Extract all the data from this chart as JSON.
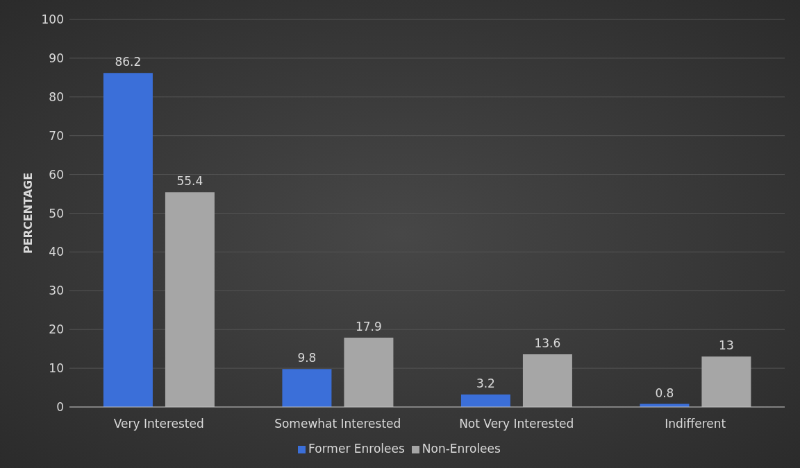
{
  "chart_data": {
    "type": "bar",
    "ylabel": "PERCENTAGE",
    "categories": [
      "Very Interested",
      "Somewhat Interested",
      "Not Very Interested",
      "Indifferent"
    ],
    "series": [
      {
        "name": "Former Enrolees",
        "color": "#3b6fd9",
        "values": [
          86.2,
          9.8,
          3.2,
          0.8
        ]
      },
      {
        "name": "Non-Enrolees",
        "color": "#a6a6a6",
        "values": [
          55.4,
          17.9,
          13.6,
          13
        ]
      }
    ],
    "ylim": [
      0,
      100
    ],
    "yticks": [
      0,
      10,
      20,
      30,
      40,
      50,
      60,
      70,
      80,
      90,
      100
    ],
    "grid": "y",
    "legend": "bottom",
    "data_labels": true
  }
}
